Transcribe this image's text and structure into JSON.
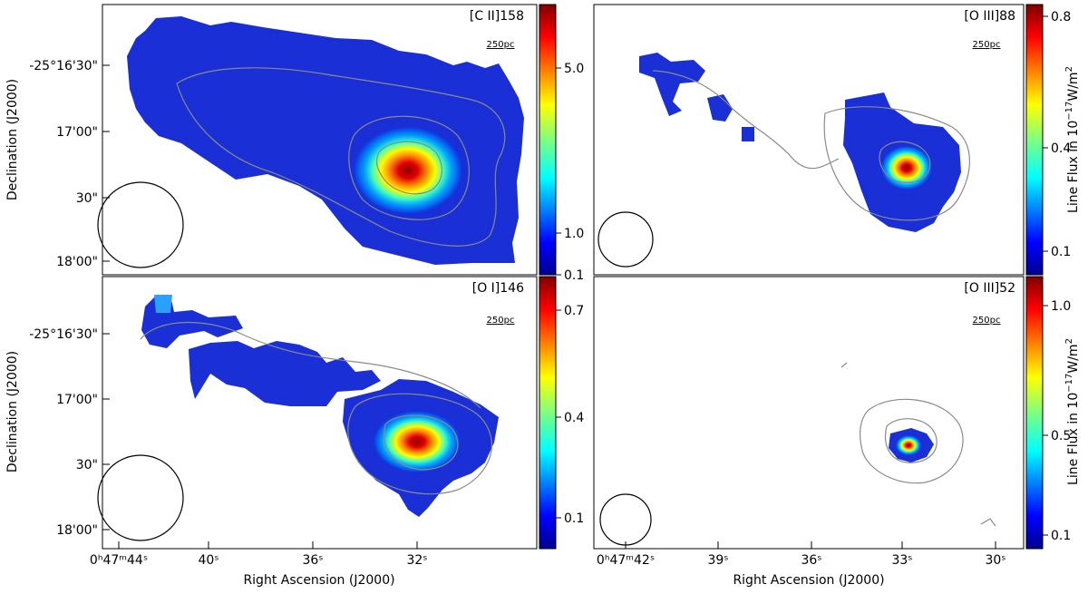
{
  "figure": {
    "xlabel": "Right Ascension (J2000)",
    "ylabel": "Declination (J2000)",
    "colorbar_label": "Line Flux in 10",
    "colorbar_exp": "−17",
    "colorbar_unit": "W/m",
    "colorbar_unit_exp": "2",
    "scale_bar_label": "250pc",
    "dec_ticks": [
      "-25°16'30\"",
      "17'00\"",
      "30\"",
      "18'00\""
    ],
    "ra_ticks_left": [
      "0ʰ47ᵐ44ˢ",
      "40ˢ",
      "36ˢ",
      "32ˢ"
    ],
    "ra_ticks_right": [
      "0ʰ47ᵐ42ˢ",
      "39ˢ",
      "36ˢ",
      "33ˢ",
      "30ˢ"
    ]
  },
  "chart_data": [
    {
      "type": "heatmap",
      "title": "[C II]158",
      "colorbar_ticks": [
        "0.1",
        "1.0",
        "5.0"
      ],
      "colorbar_tick_values": [
        0.1,
        1.0,
        5.0
      ],
      "colorbar_range": [
        0.1,
        6.0
      ],
      "colorbar_scale": "nonlinear",
      "peak_position_ra": "0h47m33s",
      "peak_value": 6.0
    },
    {
      "type": "heatmap",
      "title": "[O III]88",
      "colorbar_ticks": [
        "0.1",
        "0.4",
        "0.8"
      ],
      "colorbar_tick_values": [
        0.1,
        0.4,
        0.8
      ],
      "colorbar_range": [
        0.05,
        0.85
      ],
      "colorbar_scale": "nonlinear",
      "peak_position_ra": "0h47m33s",
      "peak_value": 0.85
    },
    {
      "type": "heatmap",
      "title": "[O I]146",
      "colorbar_ticks": [
        "0.1",
        "0.4",
        "0.7"
      ],
      "colorbar_tick_values": [
        0.1,
        0.4,
        0.7
      ],
      "colorbar_range": [
        0.05,
        0.8
      ],
      "colorbar_scale": "nonlinear",
      "peak_position_ra": "0h47m33s",
      "peak_value": 0.8
    },
    {
      "type": "heatmap",
      "title": "[O III]52",
      "colorbar_ticks": [
        "0.1",
        "0.5",
        "1.0"
      ],
      "colorbar_tick_values": [
        0.1,
        0.5,
        1.0
      ],
      "colorbar_range": [
        0.05,
        1.1
      ],
      "colorbar_scale": "nonlinear",
      "peak_position_ra": "0h47m33s",
      "peak_value": 1.1
    }
  ]
}
